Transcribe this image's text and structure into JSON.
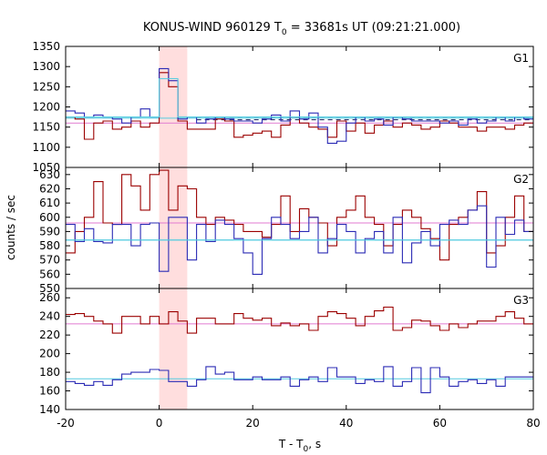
{
  "chart_data": {
    "type": "line",
    "title_prefix": "KONUS-WIND 960129 T",
    "title_sub": "0",
    "title_suffix": " = 33681s UT (09:21:21.000)",
    "xlabel_prefix": "T - T",
    "xlabel_sub": "0",
    "xlabel_suffix": ", s",
    "ylabel": "counts / sec",
    "xlim": [
      -20,
      80
    ],
    "x_ticks": [
      -20,
      0,
      20,
      40,
      60,
      80
    ],
    "highlight_interval": [
      0,
      6
    ],
    "bin_width": 2,
    "bin_start": -20,
    "colors": {
      "red": "#9b0000",
      "blue": "#2b2bb5",
      "cyan": "#55cce0",
      "magenta": "#e07ad0",
      "highlight": "#ffdede",
      "dashed": "#1a1a5a"
    },
    "panels": [
      {
        "label": "G1",
        "ylim": [
          1050,
          1350
        ],
        "y_ticks": [
          1050,
          1100,
          1150,
          1200,
          1250,
          1300,
          1350
        ],
        "red_bg": 1160,
        "blue_bg": 1172,
        "dashed_bg": [
          1168,
          1175
        ],
        "series": [
          {
            "color": "red",
            "values": [
              1175,
              1170,
              1120,
              1160,
              1165,
              1145,
              1150,
              1165,
              1150,
              1160,
              1285,
              1250,
              1165,
              1145,
              1145,
              1145,
              1170,
              1165,
              1125,
              1130,
              1135,
              1140,
              1125,
              1155,
              1175,
              1160,
              1150,
              1145,
              1125,
              1165,
              1140,
              1160,
              1135,
              1155,
              1165,
              1150,
              1160,
              1155,
              1145,
              1150,
              1165,
              1160,
              1150,
              1150,
              1140,
              1150,
              1150,
              1145,
              1155,
              1160
            ]
          },
          {
            "color": "blue",
            "values": [
              1190,
              1185,
              1175,
              1180,
              1175,
              1170,
              1160,
              1175,
              1195,
              1175,
              1295,
              1265,
              1170,
              1175,
              1160,
              1170,
              1175,
              1170,
              1165,
              1165,
              1160,
              1170,
              1180,
              1165,
              1190,
              1170,
              1185,
              1150,
              1110,
              1115,
              1160,
              1175,
              1165,
              1170,
              1155,
              1175,
              1170,
              1165,
              1165,
              1165,
              1160,
              1165,
              1155,
              1170,
              1160,
              1165,
              1175,
              1165,
              1175,
              1170
            ]
          },
          {
            "color": "cyan",
            "values": [
              1175,
              1175,
              1175,
              1175,
              1175,
              1175,
              1175,
              1175,
              1175,
              1175,
              1270,
              1270,
              1175,
              1175,
              1175,
              1175,
              1175,
              1175,
              1175,
              1175,
              1175,
              1175,
              1175,
              1175,
              1175,
              1175,
              1175,
              1175,
              1175,
              1175,
              1175,
              1175,
              1175,
              1175,
              1175,
              1175,
              1175,
              1175,
              1175,
              1175,
              1175,
              1175,
              1175,
              1175,
              1175,
              1175,
              1175,
              1175,
              1175,
              1175
            ]
          }
        ]
      },
      {
        "label": "G2",
        "ylim": [
          550,
          635
        ],
        "y_ticks": [
          550,
          560,
          570,
          580,
          590,
          600,
          610,
          620,
          630
        ],
        "red_bg": 596,
        "blue_bg": 584,
        "series": [
          {
            "color": "red",
            "values": [
              575,
              590,
              600,
              625,
              596,
              595,
              630,
              622,
              605,
              630,
              633,
              605,
              622,
              620,
              600,
              595,
              600,
              598,
              595,
              590,
              590,
              586,
              595,
              615,
              590,
              606,
              600,
              596,
              580,
              600,
              605,
              615,
              600,
              595,
              580,
              595,
              605,
              600,
              592,
              585,
              570,
              595,
              600,
              605,
              618,
              575,
              580,
              600,
              615,
              590
            ]
          },
          {
            "color": "blue",
            "values": [
              595,
              583,
              592,
              583,
              582,
              595,
              595,
              580,
              595,
              596,
              562,
              600,
              600,
              570,
              595,
              583,
              598,
              595,
              585,
              575,
              560,
              585,
              600,
              595,
              585,
              590,
              600,
              575,
              585,
              595,
              590,
              575,
              585,
              590,
              575,
              600,
              568,
              582,
              590,
              580,
              595,
              598,
              595,
              605,
              608,
              565,
              600,
              588,
              598,
              590
            ]
          },
          {
            "color": "cyan",
            "values": [
              584,
              584,
              584,
              584,
              584,
              584,
              584,
              584,
              584,
              584,
              584,
              584,
              584,
              584,
              584,
              584,
              584,
              584,
              584,
              584,
              584,
              584,
              584,
              584,
              584,
              584,
              584,
              584,
              584,
              584,
              584,
              584,
              584,
              584,
              584,
              584,
              584,
              584,
              584,
              584,
              584,
              584,
              584,
              584,
              584,
              584,
              584,
              584,
              584,
              584
            ]
          }
        ]
      },
      {
        "label": "G3",
        "ylim": [
          140,
          270
        ],
        "y_ticks": [
          140,
          160,
          180,
          200,
          220,
          240,
          260
        ],
        "red_bg": 232,
        "blue_bg": 173,
        "series": [
          {
            "color": "red",
            "values": [
              242,
              243,
              240,
              235,
              232,
              222,
              240,
              240,
              232,
              240,
              232,
              245,
              235,
              222,
              238,
              238,
              232,
              232,
              243,
              238,
              236,
              238,
              230,
              233,
              230,
              232,
              225,
              240,
              245,
              243,
              238,
              230,
              240,
              246,
              250,
              225,
              228,
              236,
              235,
              230,
              225,
              232,
              228,
              232,
              235,
              235,
              240,
              245,
              238,
              232
            ]
          },
          {
            "color": "blue",
            "values": [
              170,
              168,
              166,
              170,
              166,
              172,
              178,
              180,
              180,
              183,
              182,
              170,
              170,
              165,
              172,
              186,
              178,
              180,
              172,
              172,
              175,
              172,
              172,
              175,
              165,
              172,
              175,
              170,
              185,
              175,
              175,
              168,
              172,
              170,
              186,
              165,
              170,
              185,
              158,
              185,
              175,
              165,
              170,
              172,
              168,
              172,
              165,
              175,
              175,
              175
            ]
          }
        ]
      }
    ]
  }
}
